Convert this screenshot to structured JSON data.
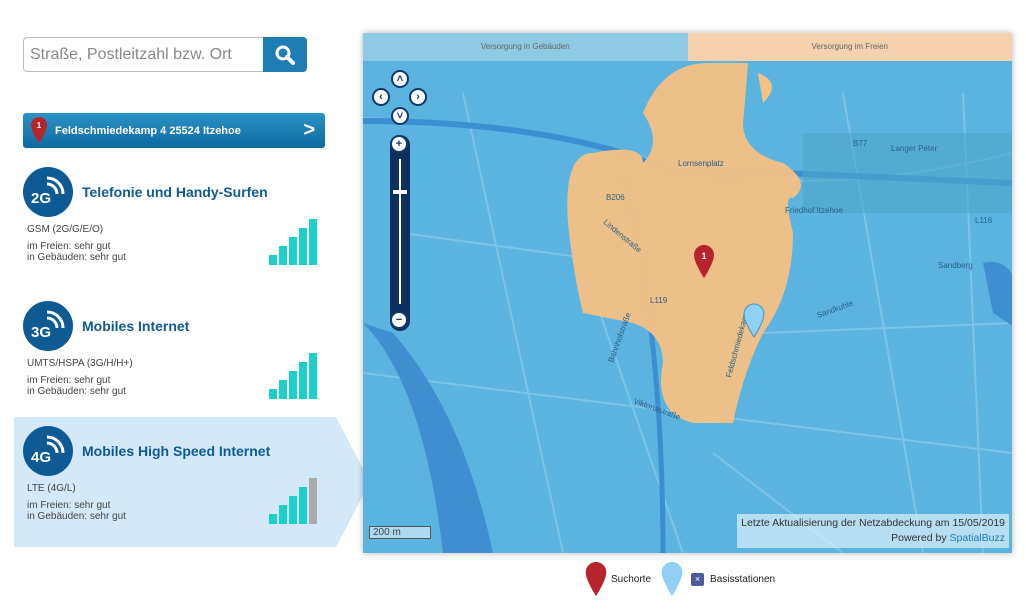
{
  "search": {
    "placeholder": "Straße, Postleitzahl bzw. Ort",
    "icon": "search-icon"
  },
  "address": {
    "marker": "1",
    "label": "Feldschmiedekamp 4 25524 Itzehoe"
  },
  "sections": [
    {
      "badge": "2G",
      "title": "Telefonie und Handy-Surfen",
      "tech": "GSM (2G/G/E/O)",
      "outdoor": "im Freien: sehr gut",
      "indoor": "in Gebäuden: sehr gut",
      "signal_bars": 5,
      "bars_total": 5
    },
    {
      "badge": "3G",
      "title": "Mobiles Internet",
      "tech": "UMTS/HSPA (3G/H/H+)",
      "outdoor": "im Freien: sehr gut",
      "indoor": "in Gebäuden: sehr gut",
      "signal_bars": 5,
      "bars_total": 5
    },
    {
      "badge": "4G",
      "title": "Mobiles High Speed Internet",
      "tech": "LTE (4G/L)",
      "outdoor": "im Freien: sehr gut",
      "indoor": "in Gebäuden: sehr gut",
      "signal_bars": 4,
      "bars_total": 5,
      "active": true
    }
  ],
  "map": {
    "tabs": [
      "Versorgung in Gebäuden",
      "Versorgung im Freien"
    ],
    "scale": "200 m",
    "update": "Letzte Aktualisierung der Netzabdeckung am 15/05/2019",
    "powered": "Powered by ",
    "powered_link": "SpatialBuzz",
    "labels": [
      "Lornsenplatz",
      "Friedhof Itzehoe",
      "Langer Peter",
      "B77",
      "B206",
      "L119",
      "L116",
      "Lindenstraße",
      "Viktoriastraße",
      "Bahnhofstraße",
      "Sandberg",
      "Feldschmiedekamp",
      "Sandkuhle"
    ],
    "colors": {
      "water": "#5ab4df",
      "coverage": "#f5c185",
      "accent": "#0d5a94"
    }
  },
  "legend": {
    "search": "Suchorte",
    "stations": "Basisstationen"
  }
}
